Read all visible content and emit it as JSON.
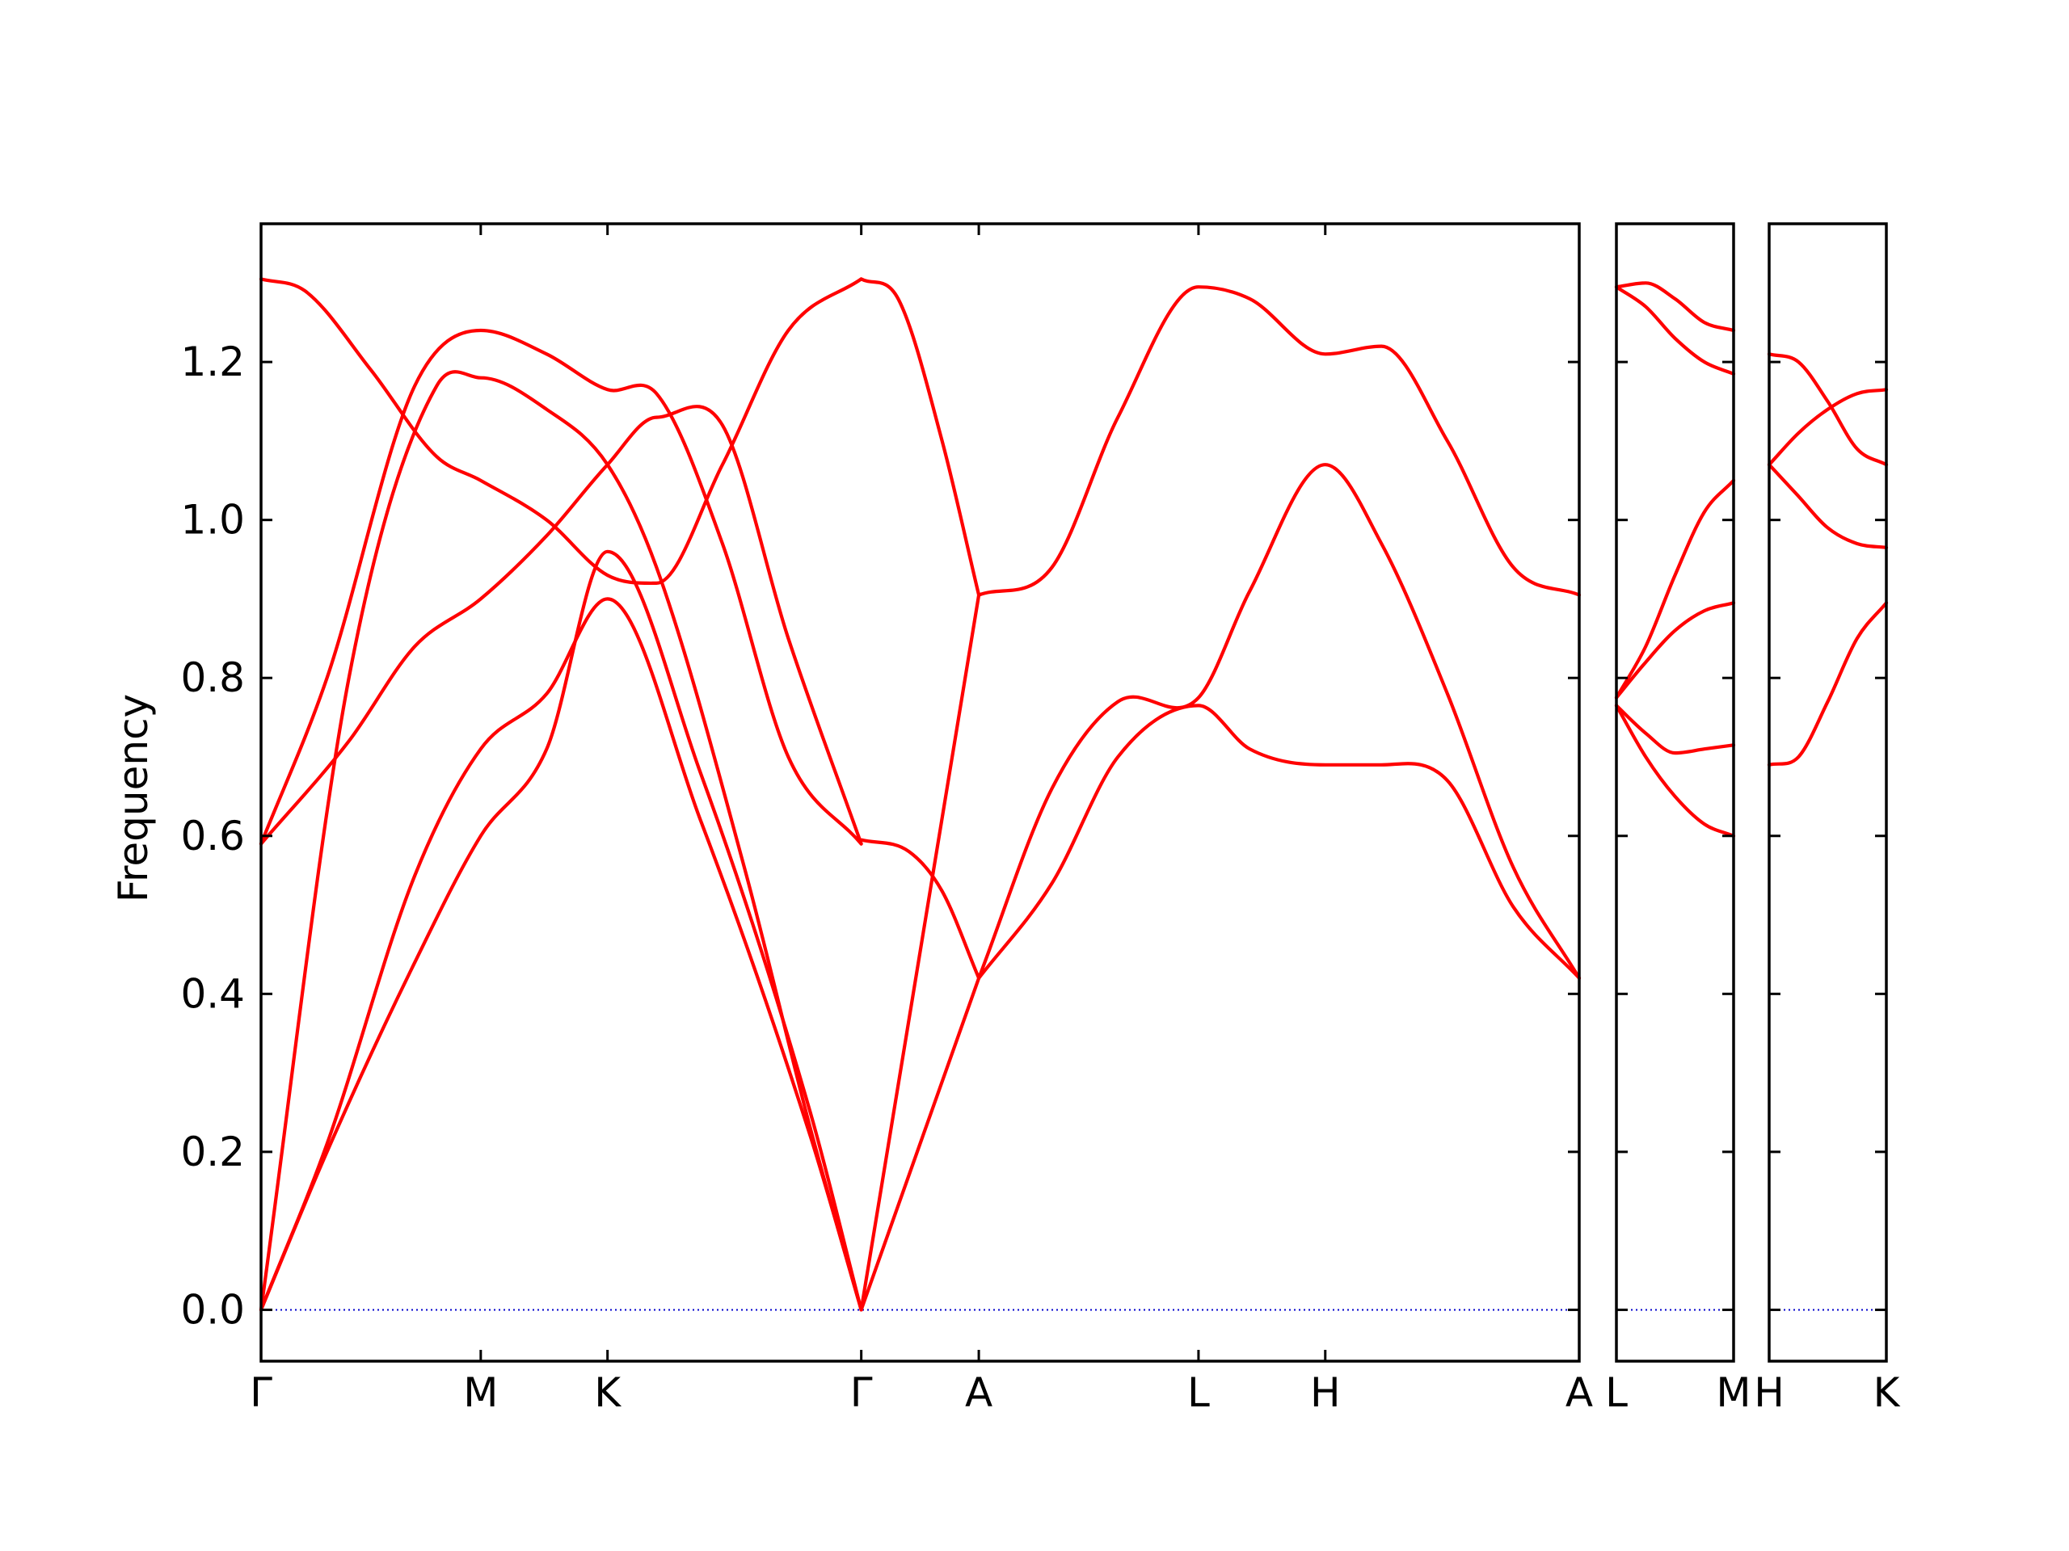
{
  "chart_data": {
    "type": "line",
    "ylabel": "Frequency",
    "ylim": [
      -0.065,
      1.375
    ],
    "yticks": [
      0.0,
      0.2,
      0.4,
      0.6,
      0.8,
      1.0,
      1.2
    ],
    "ytick_labels": [
      "0.0",
      "0.2",
      "0.4",
      "0.6",
      "0.8",
      "1.0",
      "1.2"
    ],
    "colors": {
      "bands": "#ff0000",
      "zero": "#0000cc",
      "frame": "#000000"
    },
    "panels": [
      {
        "name": "panel-1",
        "path_labels": [
          "Γ",
          "M",
          "K",
          "Γ",
          "A",
          "L",
          "H",
          "A"
        ],
        "path_positions": [
          0,
          1,
          1.577,
          2.732,
          3.267,
          4.267,
          4.844,
          6.0
        ],
        "bands": [
          {
            "x": [
              0,
              0.3,
              0.7,
              1.0,
              1.3,
              1.577,
              2.0,
              2.5,
              2.732
            ],
            "y": [
              0,
              0.2,
              0.44,
              0.6,
              0.71,
              0.96,
              0.68,
              0.25,
              0
            ]
          },
          {
            "x": [
              0,
              0.3,
              0.7,
              1.0,
              1.3,
              1.577,
              2.0,
              2.5,
              2.732
            ],
            "y": [
              0,
              0.21,
              0.55,
              0.71,
              0.78,
              0.9,
              0.62,
              0.22,
              0
            ]
          },
          {
            "x": [
              0,
              0.4,
              0.8,
              1.0,
              1.3,
              1.577,
              1.8,
              2.2,
              2.5,
              2.732
            ],
            "y": [
              0,
              0.8,
              1.17,
              1.18,
              1.14,
              1.07,
              0.94,
              0.56,
              0.23,
              0
            ]
          },
          {
            "x": [
              0,
              0.4,
              0.7,
              1.0,
              1.3,
              1.577,
              1.8,
              2.1,
              2.4,
              2.732
            ],
            "y": [
              0.59,
              0.72,
              0.84,
              0.9,
              0.98,
              1.07,
              1.13,
              1.12,
              0.85,
              0.59
            ]
          },
          {
            "x": [
              0,
              0.3,
              0.7,
              1.0,
              1.3,
              1.577,
              1.8,
              2.1,
              2.4,
              2.732
            ],
            "y": [
              0.59,
              0.8,
              1.17,
              1.24,
              1.21,
              1.165,
              1.16,
              0.97,
              0.7,
              0.59
            ]
          },
          {
            "x": [
              0,
              0.2,
              0.5,
              0.8,
              1.0,
              1.3,
              1.577,
              1.8,
              2.1,
              2.4,
              2.732
            ],
            "y": [
              1.305,
              1.29,
              1.19,
              1.08,
              1.05,
              1.0,
              0.93,
              0.92,
              1.07,
              1.24,
              1.305
            ]
          },
          {
            "x": [
              2.732,
              3.267
            ],
            "y": [
              0,
              0.42
            ]
          },
          {
            "x": [
              2.732,
              3.267
            ],
            "y": [
              0,
              0.905
            ]
          },
          {
            "x": [
              2.732,
              2.95,
              3.1,
              3.267
            ],
            "y": [
              0.595,
              0.58,
              0.53,
              0.42
            ]
          },
          {
            "x": [
              2.732,
              2.9,
              3.1,
              3.267
            ],
            "y": [
              1.305,
              1.28,
              1.1,
              0.905
            ]
          },
          {
            "x": [
              3.267,
              3.6,
              3.9,
              4.267,
              4.5,
              4.844,
              5.1,
              5.4,
              5.7,
              6.0
            ],
            "y": [
              0.905,
              0.94,
              1.13,
              1.295,
              1.28,
              1.21,
              1.22,
              1.1,
              0.94,
              0.905
            ]
          },
          {
            "x": [
              3.267,
              3.6,
              3.9,
              4.267,
              4.5,
              4.844,
              5.1,
              5.4,
              5.7,
              6.0
            ],
            "y": [
              0.42,
              0.66,
              0.77,
              0.775,
              0.91,
              1.07,
              0.97,
              0.78,
              0.56,
              0.42
            ]
          },
          {
            "x": [
              3.267,
              3.6,
              3.9,
              4.267,
              4.5,
              4.844,
              5.1,
              5.4,
              5.7,
              6.0
            ],
            "y": [
              0.42,
              0.54,
              0.7,
              0.765,
              0.71,
              0.69,
              0.69,
              0.67,
              0.51,
              0.42
            ]
          }
        ]
      },
      {
        "name": "panel-2",
        "path_labels": [
          "L",
          "M"
        ],
        "path_positions": [
          0,
          1
        ],
        "bands": [
          {
            "x": [
              0,
              0.25,
              0.5,
              0.75,
              1
            ],
            "y": [
              1.295,
              1.3,
              1.28,
              1.25,
              1.24
            ]
          },
          {
            "x": [
              0,
              0.25,
              0.5,
              0.75,
              1
            ],
            "y": [
              1.295,
              1.27,
              1.23,
              1.2,
              1.185
            ]
          },
          {
            "x": [
              0,
              0.25,
              0.5,
              0.75,
              1
            ],
            "y": [
              0.775,
              0.84,
              0.93,
              1.01,
              1.05
            ]
          },
          {
            "x": [
              0,
              0.25,
              0.5,
              0.75,
              1
            ],
            "y": [
              0.775,
              0.82,
              0.86,
              0.885,
              0.895
            ]
          },
          {
            "x": [
              0,
              0.25,
              0.5,
              0.75,
              1
            ],
            "y": [
              0.765,
              0.73,
              0.705,
              0.71,
              0.715
            ]
          },
          {
            "x": [
              0,
              0.25,
              0.5,
              0.75,
              1
            ],
            "y": [
              0.765,
              0.7,
              0.65,
              0.615,
              0.6
            ]
          }
        ]
      },
      {
        "name": "panel-3",
        "path_labels": [
          "H",
          "K"
        ],
        "path_positions": [
          0,
          1
        ],
        "bands": [
          {
            "x": [
              0,
              0.25,
              0.5,
              0.75,
              1
            ],
            "y": [
              1.21,
              1.2,
              1.15,
              1.09,
              1.07
            ]
          },
          {
            "x": [
              0,
              0.25,
              0.5,
              0.75,
              1
            ],
            "y": [
              1.07,
              1.11,
              1.14,
              1.16,
              1.165
            ]
          },
          {
            "x": [
              0,
              0.25,
              0.5,
              0.75,
              1
            ],
            "y": [
              1.07,
              1.03,
              0.99,
              0.97,
              0.965
            ]
          },
          {
            "x": [
              0,
              0.25,
              0.5,
              0.75,
              1
            ],
            "y": [
              0.69,
              0.7,
              0.77,
              0.85,
              0.895
            ]
          }
        ]
      }
    ]
  }
}
